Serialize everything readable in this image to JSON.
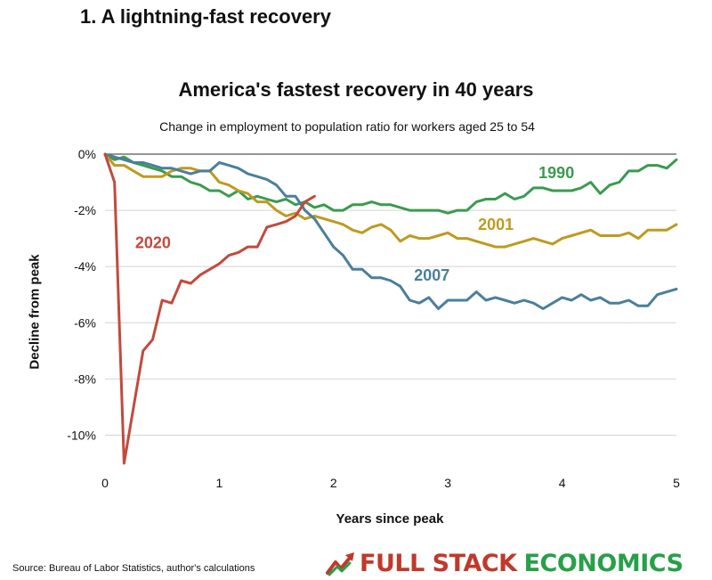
{
  "heading": "1. A lightning-fast recovery",
  "source": "Source: Bureau of Labor Statistics, author's calculations",
  "brand": {
    "part1": "FULL STACK",
    "part2": "ECONOMICS",
    "color1": "#c0392b",
    "color2": "#27a048",
    "icon": "rising-arrow-icon"
  },
  "chart_data": {
    "type": "line",
    "title": "America's fastest recovery in 40 years",
    "subtitle": "Change in employment to population ratio for workers aged 25 to 54",
    "xlabel": "Years since peak",
    "ylabel": "Decline from peak",
    "xlim": [
      0,
      5
    ],
    "ylim": [
      -11,
      0
    ],
    "xticks": [
      0,
      1,
      2,
      3,
      4,
      5
    ],
    "xtick_labels": [
      "0",
      "1",
      "2",
      "3",
      "4",
      "5"
    ],
    "yticks": [
      0,
      -2,
      -4,
      -6,
      -8,
      -10
    ],
    "ytick_labels": [
      "0%",
      "-2%",
      "-4%",
      "-6%",
      "-8%",
      "-10%"
    ],
    "grid": "horizontal",
    "legend": "direct labels on lines",
    "series": [
      {
        "name": "1990",
        "color": "#3a9b4f",
        "x": [
          0,
          0.083,
          0.167,
          0.25,
          0.333,
          0.417,
          0.5,
          0.583,
          0.667,
          0.75,
          0.833,
          0.917,
          1,
          1.083,
          1.167,
          1.25,
          1.333,
          1.417,
          1.5,
          1.583,
          1.667,
          1.75,
          1.833,
          1.917,
          2,
          2.083,
          2.167,
          2.25,
          2.333,
          2.417,
          2.5,
          2.583,
          2.667,
          2.75,
          2.833,
          2.917,
          3,
          3.083,
          3.167,
          3.25,
          3.333,
          3.417,
          3.5,
          3.583,
          3.667,
          3.75,
          3.833,
          3.917,
          4,
          4.083,
          4.167,
          4.25,
          4.333,
          4.417,
          4.5,
          4.583,
          4.667,
          4.75,
          4.833,
          4.917,
          5
        ],
        "values": [
          0,
          -0.2,
          -0.1,
          -0.3,
          -0.4,
          -0.5,
          -0.6,
          -0.8,
          -0.8,
          -1.0,
          -1.1,
          -1.3,
          -1.3,
          -1.5,
          -1.3,
          -1.6,
          -1.5,
          -1.6,
          -1.7,
          -1.6,
          -1.8,
          -1.7,
          -1.9,
          -1.8,
          -2.0,
          -2.0,
          -1.8,
          -1.8,
          -1.7,
          -1.8,
          -1.8,
          -1.9,
          -2.0,
          -2.0,
          -2.0,
          -2.0,
          -2.1,
          -2.0,
          -2.0,
          -1.7,
          -1.6,
          -1.6,
          -1.4,
          -1.6,
          -1.5,
          -1.2,
          -1.2,
          -1.3,
          -1.3,
          -1.3,
          -1.2,
          -1.0,
          -1.4,
          -1.1,
          -1.0,
          -0.6,
          -0.6,
          -0.4,
          -0.4,
          -0.5,
          -0.2
        ]
      },
      {
        "name": "2001",
        "color": "#bf9a1f",
        "x": [
          0,
          0.083,
          0.167,
          0.25,
          0.333,
          0.417,
          0.5,
          0.583,
          0.667,
          0.75,
          0.833,
          0.917,
          1,
          1.083,
          1.167,
          1.25,
          1.333,
          1.417,
          1.5,
          1.583,
          1.667,
          1.75,
          1.833,
          1.917,
          2,
          2.083,
          2.167,
          2.25,
          2.333,
          2.417,
          2.5,
          2.583,
          2.667,
          2.75,
          2.833,
          2.917,
          3,
          3.083,
          3.167,
          3.25,
          3.333,
          3.417,
          3.5,
          3.583,
          3.667,
          3.75,
          3.833,
          3.917,
          4,
          4.083,
          4.167,
          4.25,
          4.333,
          4.417,
          4.5,
          4.583,
          4.667,
          4.75,
          4.833,
          4.917,
          5
        ],
        "values": [
          0,
          -0.4,
          -0.4,
          -0.6,
          -0.8,
          -0.8,
          -0.8,
          -0.6,
          -0.5,
          -0.5,
          -0.6,
          -0.6,
          -1.0,
          -1.1,
          -1.3,
          -1.4,
          -1.7,
          -1.7,
          -2.0,
          -2.2,
          -2.1,
          -2.3,
          -2.2,
          -2.3,
          -2.4,
          -2.5,
          -2.7,
          -2.8,
          -2.6,
          -2.5,
          -2.7,
          -3.1,
          -2.9,
          -3.0,
          -3.0,
          -2.9,
          -2.8,
          -3.0,
          -3.0,
          -3.1,
          -3.2,
          -3.3,
          -3.3,
          -3.2,
          -3.1,
          -3.0,
          -3.1,
          -3.2,
          -3.0,
          -2.9,
          -2.8,
          -2.7,
          -2.9,
          -2.9,
          -2.9,
          -2.8,
          -3.0,
          -2.7,
          -2.7,
          -2.7,
          -2.5
        ]
      },
      {
        "name": "2007",
        "color": "#4a7f9c",
        "x": [
          0,
          0.083,
          0.167,
          0.25,
          0.333,
          0.417,
          0.5,
          0.583,
          0.667,
          0.75,
          0.833,
          0.917,
          1,
          1.083,
          1.167,
          1.25,
          1.333,
          1.417,
          1.5,
          1.583,
          1.667,
          1.75,
          1.833,
          1.917,
          2,
          2.083,
          2.167,
          2.25,
          2.333,
          2.417,
          2.5,
          2.583,
          2.667,
          2.75,
          2.833,
          2.917,
          3,
          3.083,
          3.167,
          3.25,
          3.333,
          3.417,
          3.5,
          3.583,
          3.667,
          3.75,
          3.833,
          3.917,
          4,
          4.083,
          4.167,
          4.25,
          4.333,
          4.417,
          4.5,
          4.583,
          4.667,
          4.75,
          4.833,
          4.917,
          5
        ],
        "values": [
          0,
          -0.1,
          -0.2,
          -0.3,
          -0.3,
          -0.4,
          -0.5,
          -0.5,
          -0.6,
          -0.7,
          -0.6,
          -0.6,
          -0.3,
          -0.4,
          -0.5,
          -0.7,
          -0.8,
          -0.9,
          -1.1,
          -1.5,
          -1.5,
          -2.0,
          -2.3,
          -2.8,
          -3.3,
          -3.6,
          -4.1,
          -4.1,
          -4.4,
          -4.4,
          -4.5,
          -4.7,
          -5.2,
          -5.3,
          -5.1,
          -5.5,
          -5.2,
          -5.2,
          -5.2,
          -4.9,
          -5.2,
          -5.1,
          -5.2,
          -5.3,
          -5.2,
          -5.3,
          -5.5,
          -5.3,
          -5.1,
          -5.2,
          -5.0,
          -5.2,
          -5.1,
          -5.3,
          -5.3,
          -5.2,
          -5.4,
          -5.4,
          -5.0,
          -4.9,
          -4.8
        ]
      },
      {
        "name": "2020",
        "color": "#c24a3c",
        "x": [
          0,
          0.083,
          0.167,
          0.25,
          0.333,
          0.417,
          0.5,
          0.583,
          0.667,
          0.75,
          0.833,
          0.917,
          1,
          1.083,
          1.167,
          1.25,
          1.333,
          1.417,
          1.5,
          1.583,
          1.667,
          1.75,
          1.833
        ],
        "values": [
          0,
          -1.0,
          -11.0,
          -9.0,
          -7.0,
          -6.6,
          -5.2,
          -5.3,
          -4.5,
          -4.6,
          -4.3,
          -4.1,
          -3.9,
          -3.6,
          -3.5,
          -3.3,
          -3.3,
          -2.6,
          -2.5,
          -2.4,
          -2.2,
          -1.7,
          -1.5
        ]
      }
    ],
    "annotations": [
      {
        "text": "1990",
        "x": 3.95,
        "y": -0.85,
        "color": "#3a9b4f"
      },
      {
        "text": "2001",
        "x": 3.42,
        "y": -2.7,
        "color": "#bf9a1f"
      },
      {
        "text": "2007",
        "x": 2.86,
        "y": -4.5,
        "color": "#4a7f9c"
      },
      {
        "text": "2020",
        "x": 0.42,
        "y": -3.35,
        "color": "#c24a3c"
      }
    ]
  }
}
